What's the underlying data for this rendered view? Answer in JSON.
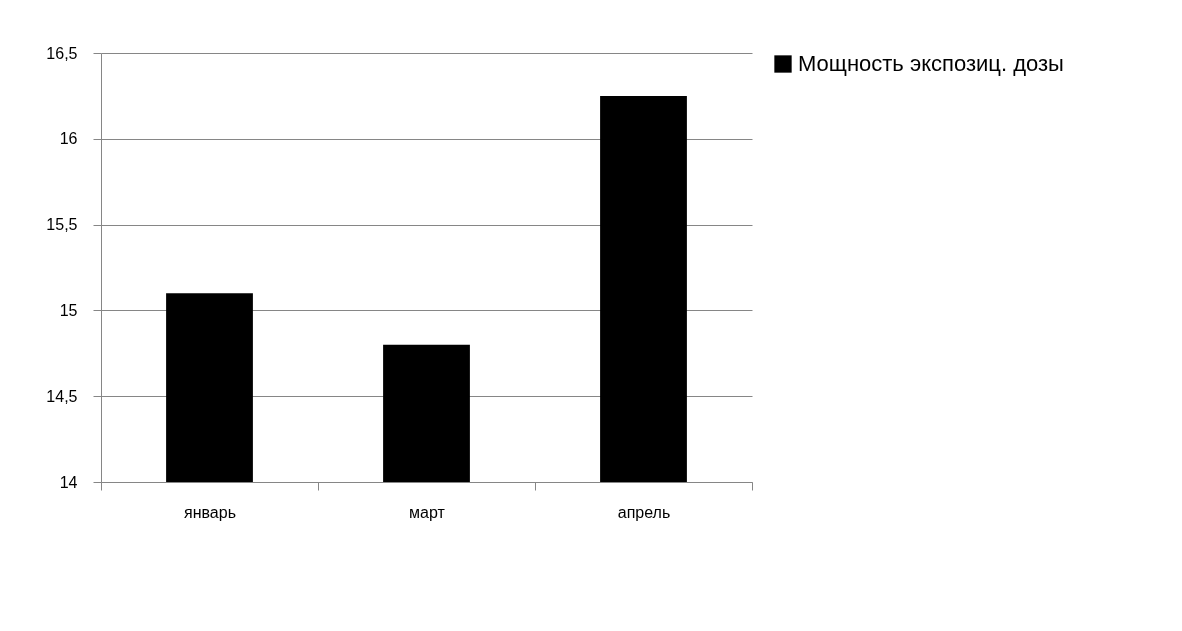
{
  "chart_data": {
    "type": "bar",
    "categories": [
      "январь",
      "март",
      "апрель"
    ],
    "series": [
      {
        "name": "Мощность экспозиц. дозы",
        "color": "#000000",
        "values": [
          15.1,
          14.8,
          16.25
        ]
      }
    ],
    "ylim": [
      14,
      16.5
    ],
    "yticks": [
      {
        "value": 14,
        "label": "14"
      },
      {
        "value": 14.5,
        "label": "14,5"
      },
      {
        "value": 15,
        "label": "15"
      },
      {
        "value": 15.5,
        "label": "15,5"
      },
      {
        "value": 16,
        "label": "16"
      },
      {
        "value": 16.5,
        "label": "16,5"
      }
    ],
    "grid": "y",
    "legend": "right"
  }
}
